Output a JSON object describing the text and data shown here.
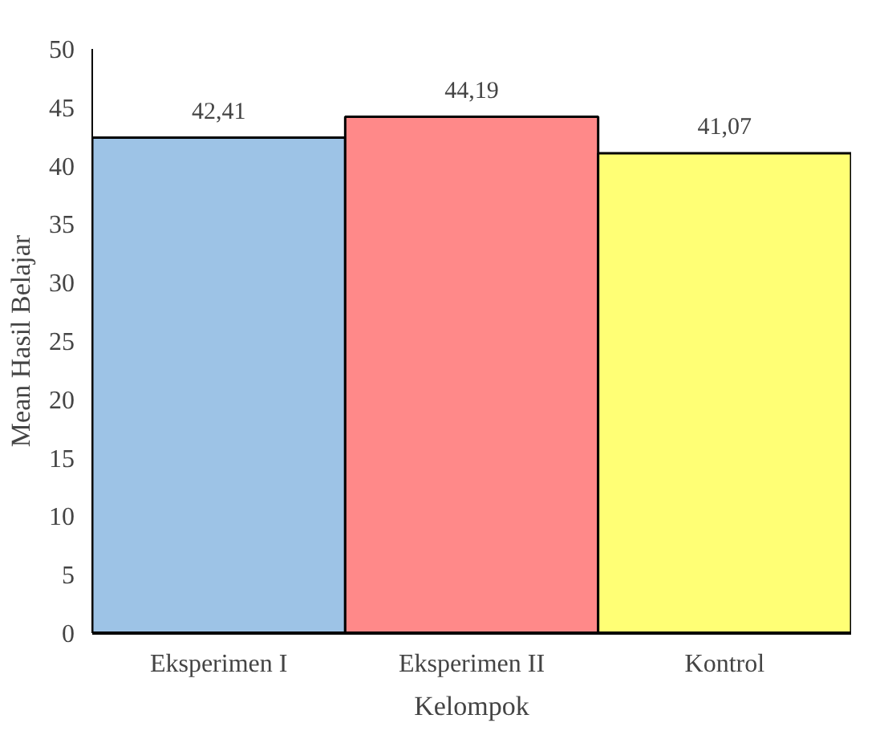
{
  "chart_data": {
    "type": "bar",
    "xlabel": "Kelompok",
    "ylabel": "Mean Hasil Belajar",
    "categories": [
      "Eksperimen I",
      "Eksperimen II",
      "Kontrol"
    ],
    "values": [
      42.41,
      44.19,
      41.07
    ],
    "colors": [
      "#9dc3e6",
      "#ff8989",
      "#ffff75"
    ],
    "value_labels": [
      "42,41",
      "44,19",
      "41,07"
    ],
    "ylim": [
      0,
      50
    ],
    "yticks": [
      0,
      5,
      10,
      15,
      20,
      25,
      30,
      35,
      40,
      45,
      50
    ],
    "grid": false
  }
}
